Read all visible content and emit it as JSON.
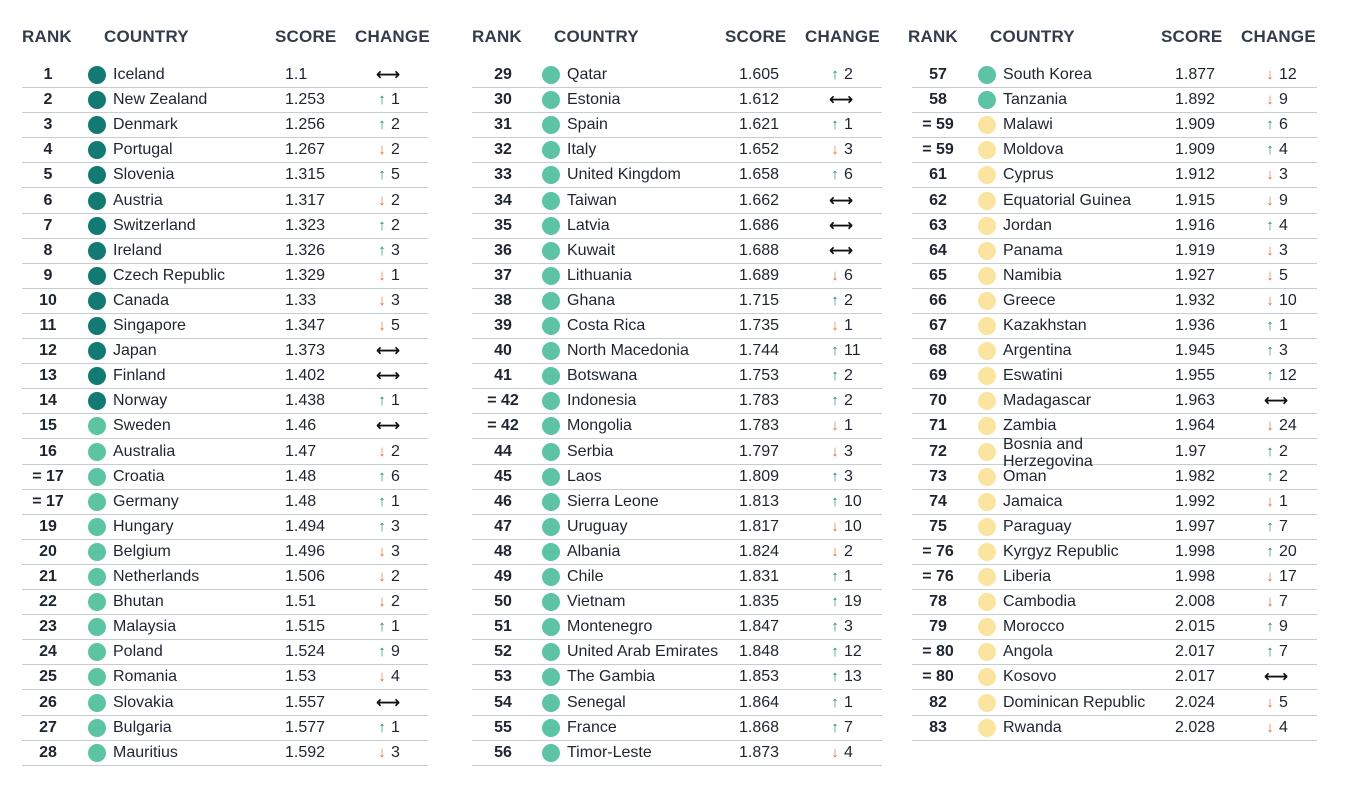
{
  "headers": {
    "rank": "RANK",
    "country": "COUNTRY",
    "score": "SCORE",
    "change": "CHANGE"
  },
  "colors": {
    "tier1": "#127a72",
    "tier2": "#5cc4a2",
    "tier3": "#fbe4a0",
    "up": "#1d8a6b",
    "down": "#e0703e",
    "same": "#111111"
  },
  "columns": [
    [
      {
        "rank": "1",
        "country": "Iceland",
        "score": "1.1",
        "tier": 1,
        "dir": "same",
        "change": ""
      },
      {
        "rank": "2",
        "country": "New Zealand",
        "score": "1.253",
        "tier": 1,
        "dir": "up",
        "change": "1"
      },
      {
        "rank": "3",
        "country": "Denmark",
        "score": "1.256",
        "tier": 1,
        "dir": "up",
        "change": "2"
      },
      {
        "rank": "4",
        "country": "Portugal",
        "score": "1.267",
        "tier": 1,
        "dir": "down",
        "change": "2"
      },
      {
        "rank": "5",
        "country": "Slovenia",
        "score": "1.315",
        "tier": 1,
        "dir": "up",
        "change": "5"
      },
      {
        "rank": "6",
        "country": "Austria",
        "score": "1.317",
        "tier": 1,
        "dir": "down",
        "change": "2"
      },
      {
        "rank": "7",
        "country": "Switzerland",
        "score": "1.323",
        "tier": 1,
        "dir": "up",
        "change": "2"
      },
      {
        "rank": "8",
        "country": "Ireland",
        "score": "1.326",
        "tier": 1,
        "dir": "up",
        "change": "3"
      },
      {
        "rank": "9",
        "country": "Czech Republic",
        "score": "1.329",
        "tier": 1,
        "dir": "down",
        "change": "1"
      },
      {
        "rank": "10",
        "country": "Canada",
        "score": "1.33",
        "tier": 1,
        "dir": "down",
        "change": "3"
      },
      {
        "rank": "11",
        "country": "Singapore",
        "score": "1.347",
        "tier": 1,
        "dir": "down",
        "change": "5"
      },
      {
        "rank": "12",
        "country": "Japan",
        "score": "1.373",
        "tier": 1,
        "dir": "same",
        "change": ""
      },
      {
        "rank": "13",
        "country": "Finland",
        "score": "1.402",
        "tier": 1,
        "dir": "same",
        "change": ""
      },
      {
        "rank": "14",
        "country": "Norway",
        "score": "1.438",
        "tier": 1,
        "dir": "up",
        "change": "1"
      },
      {
        "rank": "15",
        "country": "Sweden",
        "score": "1.46",
        "tier": 2,
        "dir": "same",
        "change": ""
      },
      {
        "rank": "16",
        "country": "Australia",
        "score": "1.47",
        "tier": 2,
        "dir": "down",
        "change": "2"
      },
      {
        "rank": "= 17",
        "country": "Croatia",
        "score": "1.48",
        "tier": 2,
        "dir": "up",
        "change": "6"
      },
      {
        "rank": "= 17",
        "country": "Germany",
        "score": "1.48",
        "tier": 2,
        "dir": "up",
        "change": "1"
      },
      {
        "rank": "19",
        "country": "Hungary",
        "score": "1.494",
        "tier": 2,
        "dir": "up",
        "change": "3"
      },
      {
        "rank": "20",
        "country": "Belgium",
        "score": "1.496",
        "tier": 2,
        "dir": "down",
        "change": "3"
      },
      {
        "rank": "21",
        "country": "Netherlands",
        "score": "1.506",
        "tier": 2,
        "dir": "down",
        "change": "2"
      },
      {
        "rank": "22",
        "country": "Bhutan",
        "score": "1.51",
        "tier": 2,
        "dir": "down",
        "change": "2"
      },
      {
        "rank": "23",
        "country": "Malaysia",
        "score": "1.515",
        "tier": 2,
        "dir": "up",
        "change": "1"
      },
      {
        "rank": "24",
        "country": "Poland",
        "score": "1.524",
        "tier": 2,
        "dir": "up",
        "change": "9"
      },
      {
        "rank": "25",
        "country": "Romania",
        "score": "1.53",
        "tier": 2,
        "dir": "down",
        "change": "4"
      },
      {
        "rank": "26",
        "country": "Slovakia",
        "score": "1.557",
        "tier": 2,
        "dir": "same",
        "change": ""
      },
      {
        "rank": "27",
        "country": "Bulgaria",
        "score": "1.577",
        "tier": 2,
        "dir": "up",
        "change": "1"
      },
      {
        "rank": "28",
        "country": "Mauritius",
        "score": "1.592",
        "tier": 2,
        "dir": "down",
        "change": "3"
      }
    ],
    [
      {
        "rank": "29",
        "country": "Qatar",
        "score": "1.605",
        "tier": 2,
        "dir": "up",
        "change": "2"
      },
      {
        "rank": "30",
        "country": "Estonia",
        "score": "1.612",
        "tier": 2,
        "dir": "same",
        "change": ""
      },
      {
        "rank": "31",
        "country": "Spain",
        "score": "1.621",
        "tier": 2,
        "dir": "up",
        "change": "1"
      },
      {
        "rank": "32",
        "country": "Italy",
        "score": "1.652",
        "tier": 2,
        "dir": "down",
        "change": "3"
      },
      {
        "rank": "33",
        "country": "United Kingdom",
        "score": "1.658",
        "tier": 2,
        "dir": "up",
        "change": "6"
      },
      {
        "rank": "34",
        "country": "Taiwan",
        "score": "1.662",
        "tier": 2,
        "dir": "same",
        "change": ""
      },
      {
        "rank": "35",
        "country": "Latvia",
        "score": "1.686",
        "tier": 2,
        "dir": "same",
        "change": ""
      },
      {
        "rank": "36",
        "country": "Kuwait",
        "score": "1.688",
        "tier": 2,
        "dir": "same",
        "change": ""
      },
      {
        "rank": "37",
        "country": "Lithuania",
        "score": "1.689",
        "tier": 2,
        "dir": "down",
        "change": "6"
      },
      {
        "rank": "38",
        "country": "Ghana",
        "score": "1.715",
        "tier": 2,
        "dir": "up",
        "change": "2"
      },
      {
        "rank": "39",
        "country": "Costa Rica",
        "score": "1.735",
        "tier": 2,
        "dir": "down",
        "change": "1"
      },
      {
        "rank": "40",
        "country": "North Macedonia",
        "score": "1.744",
        "tier": 2,
        "dir": "up",
        "change": "11"
      },
      {
        "rank": "41",
        "country": "Botswana",
        "score": "1.753",
        "tier": 2,
        "dir": "up",
        "change": "2"
      },
      {
        "rank": "= 42",
        "country": "Indonesia",
        "score": "1.783",
        "tier": 2,
        "dir": "up",
        "change": "2"
      },
      {
        "rank": "= 42",
        "country": "Mongolia",
        "score": "1.783",
        "tier": 2,
        "dir": "down",
        "change": "1"
      },
      {
        "rank": "44",
        "country": "Serbia",
        "score": "1.797",
        "tier": 2,
        "dir": "down",
        "change": "3"
      },
      {
        "rank": "45",
        "country": "Laos",
        "score": "1.809",
        "tier": 2,
        "dir": "up",
        "change": "3"
      },
      {
        "rank": "46",
        "country": "Sierra Leone",
        "score": "1.813",
        "tier": 2,
        "dir": "up",
        "change": "10"
      },
      {
        "rank": "47",
        "country": "Uruguay",
        "score": "1.817",
        "tier": 2,
        "dir": "down",
        "change": "10"
      },
      {
        "rank": "48",
        "country": "Albania",
        "score": "1.824",
        "tier": 2,
        "dir": "down",
        "change": "2"
      },
      {
        "rank": "49",
        "country": "Chile",
        "score": "1.831",
        "tier": 2,
        "dir": "up",
        "change": "1"
      },
      {
        "rank": "50",
        "country": "Vietnam",
        "score": "1.835",
        "tier": 2,
        "dir": "up",
        "change": "19"
      },
      {
        "rank": "51",
        "country": "Montenegro",
        "score": "1.847",
        "tier": 2,
        "dir": "up",
        "change": "3"
      },
      {
        "rank": "52",
        "country": "United Arab Emirates",
        "score": "1.848",
        "tier": 2,
        "dir": "up",
        "change": "12"
      },
      {
        "rank": "53",
        "country": "The Gambia",
        "score": "1.853",
        "tier": 2,
        "dir": "up",
        "change": "13"
      },
      {
        "rank": "54",
        "country": "Senegal",
        "score": "1.864",
        "tier": 2,
        "dir": "up",
        "change": "1"
      },
      {
        "rank": "55",
        "country": "France",
        "score": "1.868",
        "tier": 2,
        "dir": "up",
        "change": "7"
      },
      {
        "rank": "56",
        "country": "Timor-Leste",
        "score": "1.873",
        "tier": 2,
        "dir": "down",
        "change": "4"
      }
    ],
    [
      {
        "rank": "57",
        "country": "South Korea",
        "score": "1.877",
        "tier": 2,
        "dir": "down",
        "change": "12"
      },
      {
        "rank": "58",
        "country": "Tanzania",
        "score": "1.892",
        "tier": 2,
        "dir": "down",
        "change": "9"
      },
      {
        "rank": "= 59",
        "country": "Malawi",
        "score": "1.909",
        "tier": 3,
        "dir": "up",
        "change": "6"
      },
      {
        "rank": "= 59",
        "country": "Moldova",
        "score": "1.909",
        "tier": 3,
        "dir": "up",
        "change": "4"
      },
      {
        "rank": "61",
        "country": "Cyprus",
        "score": "1.912",
        "tier": 3,
        "dir": "down",
        "change": "3"
      },
      {
        "rank": "62",
        "country": "Equatorial Guinea",
        "score": "1.915",
        "tier": 3,
        "dir": "down",
        "change": "9"
      },
      {
        "rank": "63",
        "country": "Jordan",
        "score": "1.916",
        "tier": 3,
        "dir": "up",
        "change": "4"
      },
      {
        "rank": "64",
        "country": "Panama",
        "score": "1.919",
        "tier": 3,
        "dir": "down",
        "change": "3"
      },
      {
        "rank": "65",
        "country": "Namibia",
        "score": "1.927",
        "tier": 3,
        "dir": "down",
        "change": "5"
      },
      {
        "rank": "66",
        "country": "Greece",
        "score": "1.932",
        "tier": 3,
        "dir": "down",
        "change": "10"
      },
      {
        "rank": "67",
        "country": "Kazakhstan",
        "score": "1.936",
        "tier": 3,
        "dir": "up",
        "change": "1"
      },
      {
        "rank": "68",
        "country": "Argentina",
        "score": "1.945",
        "tier": 3,
        "dir": "up",
        "change": "3"
      },
      {
        "rank": "69",
        "country": "Eswatini",
        "score": "1.955",
        "tier": 3,
        "dir": "up",
        "change": "12"
      },
      {
        "rank": "70",
        "country": "Madagascar",
        "score": "1.963",
        "tier": 3,
        "dir": "same",
        "change": ""
      },
      {
        "rank": "71",
        "country": "Zambia",
        "score": "1.964",
        "tier": 3,
        "dir": "down",
        "change": "24"
      },
      {
        "rank": "72",
        "country": "Bosnia and Herzegovina",
        "country_lines": [
          "Bosnia and",
          "Herzegovina"
        ],
        "score": "1.97",
        "tier": 3,
        "dir": "up",
        "change": "2"
      },
      {
        "rank": "73",
        "country": "Oman",
        "score": "1.982",
        "tier": 3,
        "dir": "up",
        "change": "2"
      },
      {
        "rank": "74",
        "country": "Jamaica",
        "score": "1.992",
        "tier": 3,
        "dir": "down",
        "change": "1"
      },
      {
        "rank": "75",
        "country": "Paraguay",
        "score": "1.997",
        "tier": 3,
        "dir": "up",
        "change": "7"
      },
      {
        "rank": "= 76",
        "country": "Kyrgyz Republic",
        "score": "1.998",
        "tier": 3,
        "dir": "up",
        "change": "20"
      },
      {
        "rank": "= 76",
        "country": "Liberia",
        "score": "1.998",
        "tier": 3,
        "dir": "down",
        "change": "17"
      },
      {
        "rank": "78",
        "country": "Cambodia",
        "score": "2.008",
        "tier": 3,
        "dir": "down",
        "change": "7"
      },
      {
        "rank": "79",
        "country": "Morocco",
        "score": "2.015",
        "tier": 3,
        "dir": "up",
        "change": "9"
      },
      {
        "rank": "= 80",
        "country": "Angola",
        "score": "2.017",
        "tier": 3,
        "dir": "up",
        "change": "7"
      },
      {
        "rank": "= 80",
        "country": "Kosovo",
        "score": "2.017",
        "tier": 3,
        "dir": "same",
        "change": ""
      },
      {
        "rank": "82",
        "country": "Dominican Republic",
        "score": "2.024",
        "tier": 3,
        "dir": "down",
        "change": "5"
      },
      {
        "rank": "83",
        "country": "Rwanda",
        "score": "2.028",
        "tier": 3,
        "dir": "down",
        "change": "4"
      }
    ]
  ]
}
